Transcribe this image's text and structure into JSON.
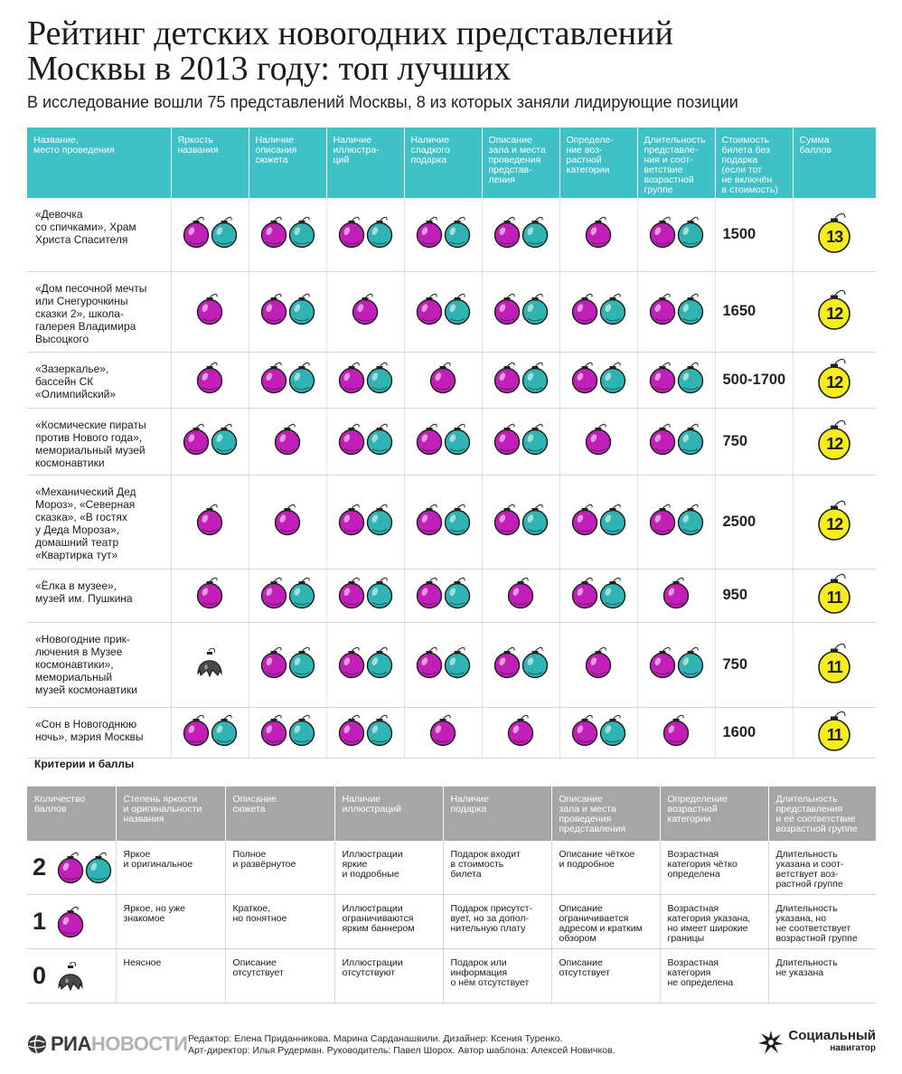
{
  "title_line1": "Рейтинг детских новогодних представлений",
  "title_line2": "Москвы в 2013 году: топ лучших",
  "subtitle": "В исследование вошли 75 представлений Москвы, 8 из которых заняли лидирующие позиции",
  "colors": {
    "header": "#40c1c7",
    "magenta": "#c21fb9",
    "teal": "#2fb3b3",
    "yellow": "#f4ec1c",
    "broken": "#4a4a4a",
    "criteria_header": "#a6a6a6"
  },
  "rating_table": {
    "headers": [
      "Название,\nместо проведения",
      "Яркость\nназвания",
      "Наличие\nописания\nсюжета",
      "Наличие\nиллюстра-\nций",
      "Наличие\nсладкого\nподарка",
      "Описание\nзала и места\nпроведения\nпредстав-\nления",
      "Определе-\nние воз-\nрастной\nкатегории",
      "Длительность\nпредставле-\nния и соот-\nветствие\nвозрастной\nгруппе",
      "Стоимость\nбилета без\nподарка\n(если тот\nне включён\nв стоимость)",
      "Сумма\nбаллов"
    ],
    "rows": [
      {
        "name": "«Девочка\nсо спичками», Храм\nХриста Спасителя",
        "scores": [
          2,
          2,
          2,
          2,
          2,
          1,
          2
        ],
        "price": "1500",
        "total": "13"
      },
      {
        "name": "«Дом песочной мечты\nили Снегурочкины\nсказки 2», школа-\nгалерея Владимира\nВысоцкого",
        "scores": [
          1,
          2,
          1,
          2,
          2,
          2,
          2
        ],
        "price": "1650",
        "total": "12"
      },
      {
        "name": "«Зазеркалье»,\nбассейн СК\n«Олимпийский»",
        "scores": [
          1,
          2,
          2,
          1,
          2,
          2,
          2
        ],
        "price": "500-1700",
        "total": "12"
      },
      {
        "name": "«Космические пираты\nпротив Нового года»,\nмемориальный музей\nкосмонавтики",
        "scores": [
          2,
          1,
          2,
          2,
          2,
          1,
          2
        ],
        "price": "750",
        "total": "12"
      },
      {
        "name": "«Механический Дед\nМороз», «Северная\nсказка», «В гостях\nу Деда Мороза»,\nдомашний театр\n«Квартирка тут»",
        "scores": [
          1,
          1,
          2,
          2,
          2,
          2,
          2
        ],
        "price": "2500",
        "total": "12"
      },
      {
        "name": "«Ёлка в музее»,\nмузей им. Пушкина",
        "scores": [
          1,
          2,
          2,
          2,
          1,
          2,
          1
        ],
        "price": "950",
        "total": "11"
      },
      {
        "name": "«Новогодние прик-\nлючения в Музее\nкосмонавтики»,\nмемориальный\nмузей космонавтики",
        "scores": [
          0,
          2,
          2,
          2,
          2,
          1,
          2
        ],
        "price": "750",
        "total": "11"
      },
      {
        "name": "«Сон в Новогоднюю\nночь», мэрия Москвы",
        "scores": [
          2,
          2,
          2,
          1,
          1,
          2,
          1
        ],
        "price": "1600",
        "total": "11"
      }
    ]
  },
  "criteria": {
    "title": "Критерии и баллы",
    "headers": [
      "Количество\nбаллов",
      "Степень яркости\nи оригинальности\nназвания",
      "Описание\nсюжета",
      "Наличие\nиллюстраций",
      "Наличие\nподарка",
      "Описание\nзала и места\nпроведения\nпредставления",
      "Определение\nвозрастной\nкатегории",
      "Длительность\nпредставления\nи её соответствие\nвозрастной группе"
    ],
    "rows": [
      {
        "score": "2",
        "cells": [
          "Яркое\nи оригинальное",
          "Полное\nи развёрнутое",
          "Иллюстрации\nяркие\nи подробные",
          "Подарок входит\nв стоимость\nбилета",
          "Описание чёткое\nи подробное",
          "Возрастная\nкатегория чётко\nопределена",
          "Длительность\nуказана и соот-\nветствует воз-\nрастной группе"
        ]
      },
      {
        "score": "1",
        "cells": [
          "Яркое, но уже\nзнакомое",
          "Краткое,\nно понятное",
          "Иллюстрации\nограничиваются\nярким баннером",
          "Подарок присутст-\nвует, но за допол-\nнительную плату",
          "Описание\nограничивается\nадресом и кратким\nобзором",
          "Возрастная\nкатегория указана,\nно имеет широкие\nграницы",
          "Длительность\nуказана, но\nне соответствует\nвозрастной группе"
        ]
      },
      {
        "score": "0",
        "cells": [
          "Неясное",
          "Описание\nотсутствует",
          "Иллюстрации\nотсутствуют",
          "Подарок или\nинформация\nо нём отсутствует",
          "Описание\nотсутствует",
          "Возрастная\nкатегория\nне определена",
          "Длительность\nне указана"
        ]
      }
    ]
  },
  "footer": {
    "ria_bold": "РИА",
    "ria_light": "НОВОСТИ",
    "credits_line1": "Редактор: Елена Приданникова. Марина Сарданашвили. Дизайнер: Ксения Туренко.",
    "credits_line2": "Арт-директор: Илья Рудерман. Руководитель: Павел Шорох. Автор шаблона: Алексей Новичков.",
    "brand_line1": "Социальный",
    "brand_line2": "навигатор"
  }
}
